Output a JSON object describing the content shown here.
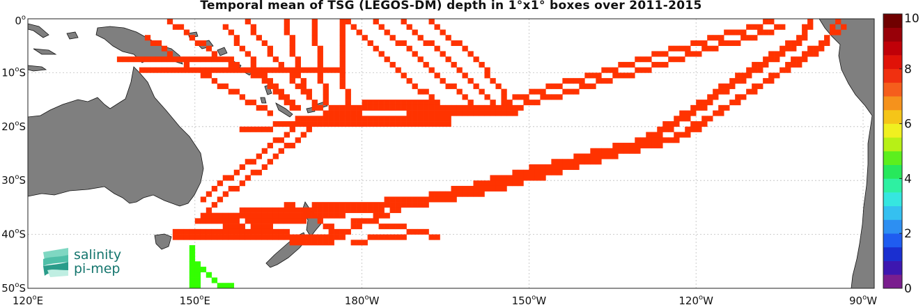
{
  "title": "Temporal mean of TSG (LEGOS-DM) depth in 1°x1° boxes over 2011-2015",
  "map": {
    "lon_range": [
      120,
      272
    ],
    "lat_range": [
      -50,
      0
    ],
    "x_ticks": [
      {
        "lon": 120,
        "num": "120",
        "hemi": "E"
      },
      {
        "lon": 150,
        "num": "150",
        "hemi": "E"
      },
      {
        "lon": 180,
        "num": "180",
        "hemi": "W"
      },
      {
        "lon": 210,
        "num": "150",
        "hemi": "W"
      },
      {
        "lon": 240,
        "num": "120",
        "hemi": "W"
      },
      {
        "lon": 270,
        "num": "90",
        "hemi": "W"
      }
    ],
    "y_ticks": [
      {
        "lat": 0,
        "num": "0",
        "hemi": ""
      },
      {
        "lat": -10,
        "num": "10",
        "hemi": "S"
      },
      {
        "lat": -20,
        "num": "20",
        "hemi": "S"
      },
      {
        "lat": -30,
        "num": "30",
        "hemi": "S"
      },
      {
        "lat": -40,
        "num": "40",
        "hemi": "S"
      },
      {
        "lat": -50,
        "num": "50",
        "hemi": "S"
      }
    ],
    "degree_symbol": "o",
    "grid": true
  },
  "colorbar": {
    "min": 0,
    "max": 10,
    "tick_labels": [
      "0",
      "2",
      "4",
      "6",
      "8",
      "10"
    ],
    "colors": [
      "#7a1e8e",
      "#3d17b0",
      "#1a2fd0",
      "#1f5cf0",
      "#2d8ff2",
      "#35c0f0",
      "#36e6e0",
      "#2ef0a2",
      "#27e85c",
      "#5cef1e",
      "#b7f016",
      "#f0f020",
      "#f5c518",
      "#f5921c",
      "#f55e1c",
      "#f03010",
      "#e01208",
      "#c00008",
      "#980008",
      "#700000"
    ]
  },
  "logo": {
    "line1": "salinity",
    "line2": "pi-mep",
    "color": "#14756d"
  },
  "chart_data": {
    "type": "heatmap",
    "title": "Temporal mean of TSG (LEGOS-DM) depth in 1°x1° boxes over 2011-2015",
    "x_axis": "longitude",
    "y_axis": "latitude",
    "value_range": [
      0,
      10
    ],
    "main_value": 8,
    "main_color": "#ff3300",
    "tracks": [
      {
        "value": 8,
        "width": 1,
        "points": [
          [
            141,
            -3
          ],
          [
            148,
            -8
          ],
          [
            158,
            -14
          ],
          [
            163,
            -17
          ]
        ]
      },
      {
        "value": 8,
        "width": 1,
        "points": [
          [
            145,
            0
          ],
          [
            153,
            -6
          ],
          [
            162,
            -11
          ],
          [
            168,
            -16
          ]
        ]
      },
      {
        "value": 8,
        "width": 1,
        "points": [
          [
            155,
            -1
          ],
          [
            162,
            -10
          ],
          [
            167,
            -16
          ]
        ]
      },
      {
        "value": 8,
        "width": 1,
        "points": [
          [
            159,
            0
          ],
          [
            164,
            -7
          ],
          [
            170,
            -14
          ],
          [
            173,
            -17
          ]
        ]
      },
      {
        "value": 8,
        "width": 1,
        "points": [
          [
            166,
            0
          ],
          [
            168,
            -9
          ],
          [
            171,
            -16
          ]
        ]
      },
      {
        "value": 8,
        "width": 1,
        "points": [
          [
            171,
            0
          ],
          [
            172,
            -10
          ],
          [
            174,
            -17
          ]
        ]
      },
      {
        "value": 8,
        "width": 1,
        "points": [
          [
            176,
            0
          ],
          [
            176,
            -9
          ],
          [
            177,
            -17
          ]
        ]
      },
      {
        "value": 8,
        "width": 1,
        "points": [
          [
            177,
            0
          ],
          [
            186,
            -9
          ],
          [
            195,
            -17
          ]
        ]
      },
      {
        "value": 8,
        "width": 1,
        "points": [
          [
            182,
            0
          ],
          [
            192,
            -9
          ],
          [
            200,
            -16
          ]
        ]
      },
      {
        "value": 8,
        "width": 1,
        "points": [
          [
            187,
            0
          ],
          [
            196,
            -8
          ],
          [
            203,
            -15
          ]
        ]
      },
      {
        "value": 8,
        "width": 1,
        "points": [
          [
            192,
            0
          ],
          [
            201,
            -8
          ],
          [
            206,
            -15
          ]
        ]
      },
      {
        "value": 8,
        "width": 1,
        "points": [
          [
            158,
            -9
          ],
          [
            176,
            -9
          ]
        ]
      },
      {
        "value": 8,
        "width": 1,
        "points": [
          [
            136,
            -7
          ],
          [
            156,
            -7
          ]
        ]
      },
      {
        "value": 8,
        "width": 1,
        "points": [
          [
            140,
            -9
          ],
          [
            165,
            -9
          ]
        ]
      },
      {
        "value": 8,
        "width": 2,
        "points": [
          [
            174,
            -16
          ],
          [
            185,
            -15
          ],
          [
            200,
            -16
          ],
          [
            207,
            -16
          ]
        ]
      },
      {
        "value": 8,
        "width": 2,
        "points": [
          [
            168,
            -18
          ],
          [
            182,
            -18
          ],
          [
            195,
            -18
          ]
        ]
      },
      {
        "value": 8,
        "width": 1,
        "points": [
          [
            158,
            -20
          ],
          [
            170,
            -19
          ],
          [
            181,
            -18
          ],
          [
            195,
            -17
          ]
        ]
      },
      {
        "value": 8,
        "width": 1,
        "points": [
          [
            168,
            -19
          ],
          [
            161,
            -25
          ],
          [
            154,
            -30
          ],
          [
            151,
            -33
          ]
        ]
      },
      {
        "value": 8,
        "width": 1,
        "points": [
          [
            170,
            -20
          ],
          [
            162,
            -27
          ],
          [
            155,
            -32
          ],
          [
            150,
            -37
          ]
        ]
      },
      {
        "value": 8,
        "width": 1,
        "points": [
          [
            205,
            -15
          ],
          [
            230,
            -7
          ],
          [
            253,
            0
          ]
        ]
      },
      {
        "value": 8,
        "width": 1,
        "points": [
          [
            207,
            -16
          ],
          [
            233,
            -8
          ],
          [
            255,
            -1
          ]
        ]
      },
      {
        "value": 8,
        "width": 2,
        "points": [
          [
            151,
            -36
          ],
          [
            190,
            -33
          ],
          [
            230,
            -22
          ],
          [
            258,
            -3
          ],
          [
            260,
            0
          ]
        ]
      },
      {
        "value": 8,
        "width": 1,
        "points": [
          [
            155,
            -38
          ],
          [
            195,
            -33
          ],
          [
            235,
            -22
          ],
          [
            262,
            -5
          ],
          [
            265,
            0
          ]
        ]
      },
      {
        "value": 8,
        "width": 1,
        "points": [
          [
            160,
            -38
          ],
          [
            200,
            -32
          ],
          [
            238,
            -21
          ],
          [
            266,
            -1
          ]
        ]
      },
      {
        "value": 8,
        "width": 2,
        "points": [
          [
            146,
            -39
          ],
          [
            160,
            -39
          ],
          [
            172,
            -40
          ],
          [
            176,
            -39
          ]
        ]
      },
      {
        "value": 8,
        "width": 1,
        "points": [
          [
            150,
            -40
          ],
          [
            165,
            -40
          ],
          [
            172,
            -41
          ]
        ]
      },
      {
        "value": 8,
        "width": 1,
        "points": [
          [
            174,
            -41
          ],
          [
            178,
            -38
          ],
          [
            186,
            -35
          ]
        ]
      },
      {
        "value": 8,
        "width": 1,
        "points": [
          [
            175,
            -39
          ],
          [
            172,
            -37
          ],
          [
            166,
            -34
          ]
        ]
      },
      {
        "value": 8,
        "width": 1,
        "points": [
          [
            178,
            -37
          ],
          [
            186,
            -38
          ],
          [
            193,
            -40
          ]
        ]
      },
      {
        "value": 8,
        "width": 1,
        "points": [
          [
            178,
            -41
          ],
          [
            184,
            -40
          ],
          [
            191,
            -39
          ]
        ]
      }
    ],
    "green_track": {
      "value": 5.5,
      "color": "#33ff00",
      "points": [
        [
          149,
          -42
        ],
        [
          149,
          -49
        ],
        [
          150,
          -49
        ],
        [
          150,
          -45
        ],
        [
          154,
          -49
        ],
        [
          156,
          -49
        ]
      ]
    }
  }
}
